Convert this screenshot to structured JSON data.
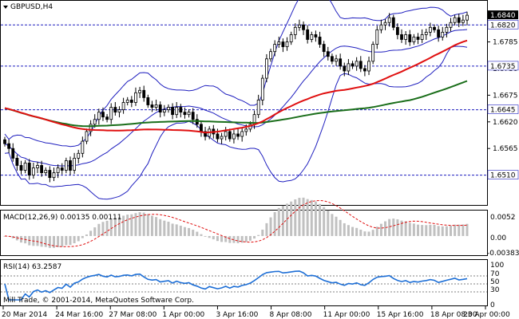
{
  "window": {
    "symbol_label": "GBPUSD,H4",
    "copyright": "Mill Trade, © 2001-2014, MetaQuotes Software Corp."
  },
  "colors": {
    "background": "#ffffff",
    "candles": "#000000",
    "bollinger": "#1f1fbf",
    "ma_red": "#e01010",
    "ma_green": "#1a6e1a",
    "levels": "#1f1fbf",
    "macd_hist": "#c0c0c0",
    "macd_signal": "#e01010",
    "rsi_line": "#1e6fd6",
    "rsi_levels": "#808080"
  },
  "price_panel": {
    "level_labels": [
      "1.6820",
      "1.6735",
      "1.6645",
      "1.6510"
    ],
    "axis_ticks": [
      "1.6840",
      "1.6785",
      "1.6730",
      "1.6675",
      "1.6620",
      "1.6565"
    ],
    "current_price_label": "1.6840"
  },
  "macd_panel": {
    "title": "MACD(12,26,9) 0.00135 0.00111",
    "axis_ticks": [
      "0.0052",
      "0.00",
      "-0.00383"
    ]
  },
  "rsi_panel": {
    "title": "RSI(14) 63.2587",
    "axis_ticks": [
      "100",
      "70",
      "50",
      "30",
      "0"
    ]
  },
  "time_axis": {
    "labels": [
      "20 Mar 2014",
      "24 Mar 16:00",
      "27 Mar 08:00",
      "1 Apr 00:00",
      "3 Apr 16:00",
      "8 Apr 08:00",
      "11 Apr 00:00",
      "15 Apr 16:00",
      "18 Apr 08:00",
      "23 Apr 00:00"
    ]
  },
  "chart_data": {
    "type": "candlestick",
    "timeframe": "H4",
    "y_range": [
      1.646,
      1.6855
    ],
    "levels": [
      1.682,
      1.6735,
      1.6645,
      1.651
    ],
    "close_approx": [
      1.6575,
      1.6565,
      1.6545,
      1.653,
      1.652,
      1.6535,
      1.651,
      1.6525,
      1.653,
      1.6515,
      1.652,
      1.6505,
      1.6515,
      1.6525,
      1.652,
      1.654,
      1.652,
      1.6545,
      1.6555,
      1.658,
      1.66,
      1.6615,
      1.6625,
      1.664,
      1.663,
      1.6625,
      1.665,
      1.664,
      1.6645,
      1.666,
      1.6665,
      1.666,
      1.668,
      1.6685,
      1.667,
      1.6655,
      1.665,
      1.6655,
      1.664,
      1.6645,
      1.665,
      1.6635,
      1.665,
      1.664,
      1.6635,
      1.664,
      1.6625,
      1.6615,
      1.66,
      1.659,
      1.6605,
      1.6595,
      1.6585,
      1.659,
      1.66,
      1.6585,
      1.6595,
      1.659,
      1.66,
      1.6605,
      1.6615,
      1.6635,
      1.6665,
      1.671,
      1.675,
      1.6765,
      1.678,
      1.6785,
      1.6775,
      1.6785,
      1.68,
      1.6815,
      1.682,
      1.681,
      1.679,
      1.68,
      1.6795,
      1.678,
      1.6765,
      1.6755,
      1.6745,
      1.675,
      1.6735,
      1.6725,
      1.674,
      1.6735,
      1.6745,
      1.673,
      1.6725,
      1.6745,
      1.678,
      1.681,
      1.682,
      1.6825,
      1.6835,
      1.6815,
      1.68,
      1.679,
      1.68,
      1.6785,
      1.6795,
      1.679,
      1.68,
      1.6805,
      1.6815,
      1.681,
      1.6795,
      1.6805,
      1.6815,
      1.6825,
      1.6835,
      1.6825,
      1.683,
      1.684
    ],
    "macd_signal_line_desc": "dashed red signal line over grey histogram",
    "rsi_levels": [
      30,
      50,
      70
    ],
    "rsi_last": 63.2587,
    "macd_main": 0.00135,
    "macd_signal": 0.00111
  }
}
